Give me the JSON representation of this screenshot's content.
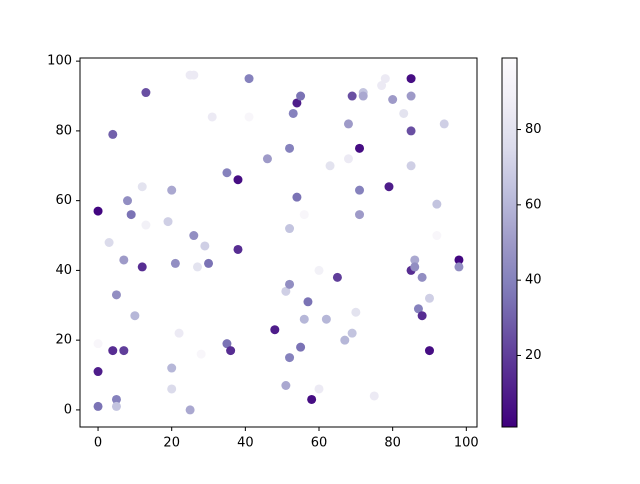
{
  "chart_data": {
    "type": "scatter",
    "colormap": "Purples_r",
    "x": [
      0,
      0,
      0,
      0,
      3,
      4,
      4,
      5,
      5,
      5,
      7,
      7,
      8,
      9,
      10,
      12,
      12,
      13,
      13,
      19,
      20,
      20,
      20,
      21,
      22,
      25,
      26,
      25,
      26,
      27,
      28,
      29,
      30,
      31,
      35,
      35,
      36,
      38,
      38,
      41,
      41,
      46,
      48,
      51,
      51,
      52,
      52,
      52,
      52,
      53,
      54,
      54,
      55,
      55,
      56,
      56,
      57,
      58,
      60,
      60,
      62,
      63,
      65,
      67,
      68,
      68,
      69,
      69,
      70,
      71,
      71,
      71,
      72,
      72,
      75,
      77,
      78,
      79,
      80,
      83,
      85,
      85,
      85,
      85,
      85,
      86,
      86,
      87,
      88,
      88,
      90,
      90,
      92,
      92,
      94,
      98,
      98
    ],
    "y": [
      57,
      11,
      1,
      19,
      48,
      79,
      17,
      33,
      3,
      1,
      17,
      43,
      60,
      56,
      27,
      41,
      64,
      91,
      53,
      54,
      63,
      12,
      6,
      42,
      22,
      96,
      96,
      0,
      50,
      41,
      16,
      47,
      42,
      84,
      68,
      19,
      17,
      66,
      46,
      95,
      84,
      72,
      23,
      34,
      7,
      75,
      52,
      36,
      15,
      85,
      88,
      61,
      90,
      18,
      26,
      56,
      31,
      3,
      40,
      6,
      26,
      70,
      38,
      20,
      82,
      72,
      90,
      22,
      28,
      75,
      63,
      56,
      91,
      90,
      4,
      93,
      95,
      64,
      89,
      85,
      95,
      90,
      80,
      70,
      40,
      43,
      41,
      29,
      27,
      38,
      17,
      32,
      59,
      50,
      82,
      43,
      41
    ],
    "c": [
      3,
      10,
      35,
      95,
      75,
      30,
      15,
      45,
      40,
      65,
      20,
      50,
      45,
      35,
      60,
      15,
      80,
      25,
      90,
      70,
      55,
      60,
      75,
      45,
      85,
      85,
      85,
      55,
      45,
      80,
      95,
      70,
      35,
      85,
      40,
      35,
      15,
      5,
      15,
      40,
      95,
      50,
      10,
      70,
      55,
      40,
      65,
      45,
      40,
      40,
      10,
      35,
      35,
      35,
      60,
      95,
      35,
      5,
      90,
      85,
      60,
      80,
      20,
      60,
      50,
      85,
      25,
      65,
      80,
      5,
      40,
      50,
      65,
      55,
      85,
      85,
      85,
      10,
      50,
      80,
      5,
      50,
      25,
      70,
      15,
      55,
      45,
      40,
      15,
      45,
      5,
      70,
      65,
      95,
      70,
      3,
      45
    ],
    "xlim": [
      -4.9,
      102.9
    ],
    "ylim": [
      -4.9,
      100.9
    ],
    "xticks": [
      0,
      20,
      40,
      60,
      80,
      100
    ],
    "yticks": [
      0,
      20,
      40,
      60,
      80,
      100
    ],
    "clim": [
      1,
      99
    ],
    "cticks": [
      20,
      40,
      60,
      80
    ]
  }
}
